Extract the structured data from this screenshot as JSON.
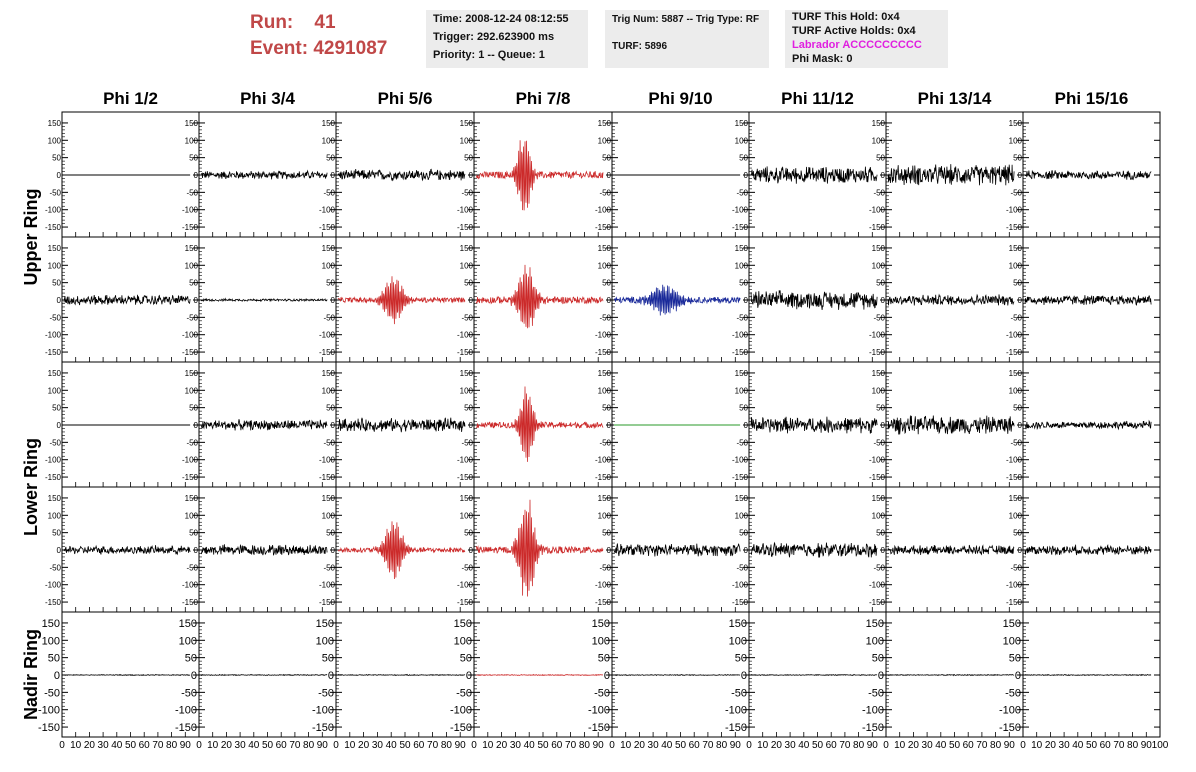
{
  "header": {
    "run_label": "Run:",
    "run_value": "41",
    "event_label": "Event:",
    "event_value": "4291087",
    "time": "Time: 2008-12-24 08:12:55",
    "trigger": "Trigger: 292.623900 ms",
    "priority_queue": "Priority: 1 -- Queue: 1",
    "trig_num_type": "Trig Num: 5887 -- Trig Type: RF",
    "turf": "TURF: 5896",
    "turf_this_hold": "TURF This Hold: 0x4",
    "turf_active_holds": "TURF Active Holds: 0x4",
    "labrador": "Labrador ACCCCCCCCC",
    "phi_mask": "Phi Mask: 0"
  },
  "colors": {
    "title_red": "#c04848",
    "trace_black": "#000000",
    "trace_red": "#cc2a2a",
    "trace_blue": "#1a2a9a",
    "trace_green": "#2a9a2a",
    "labrador": "#e020e0",
    "info_bg": "#ececec"
  },
  "chart_data": {
    "type": "line",
    "columns": [
      "Phi 1/2",
      "Phi 3/4",
      "Phi 5/6",
      "Phi 7/8",
      "Phi 9/10",
      "Phi 11/12",
      "Phi 13/14",
      "Phi 15/16"
    ],
    "row_labels": [
      "Upper Ring",
      "Lower Ring",
      "Nadir Ring"
    ],
    "rows_per_ring": [
      2,
      2,
      1
    ],
    "ylim": [
      -170,
      170
    ],
    "yticks": [
      150,
      100,
      50,
      0,
      -50,
      -100,
      -150
    ],
    "xlim": [
      0,
      100
    ],
    "xticks": [
      0,
      10,
      20,
      30,
      40,
      50,
      60,
      70,
      80,
      90,
      100
    ],
    "panels": [
      [
        {
          "color": "black",
          "kind": "flat",
          "amp": 0
        },
        {
          "color": "black",
          "kind": "noise",
          "amp": 14
        },
        {
          "color": "black",
          "kind": "noise",
          "amp": 18
        },
        {
          "color": "red",
          "kind": "pulse",
          "amp": 14,
          "peak": 130,
          "center": 38,
          "width": 6
        },
        {
          "color": "black",
          "kind": "flat",
          "amp": 0
        },
        {
          "color": "black",
          "kind": "noise",
          "amp": 28
        },
        {
          "color": "black",
          "kind": "noise",
          "amp": 34
        },
        {
          "color": "black",
          "kind": "noise",
          "amp": 15
        }
      ],
      [
        {
          "color": "black",
          "kind": "noise",
          "amp": 17
        },
        {
          "color": "black",
          "kind": "noise",
          "amp": 4
        },
        {
          "color": "red",
          "kind": "pulse",
          "amp": 10,
          "peak": 70,
          "center": 44,
          "width": 9
        },
        {
          "color": "red",
          "kind": "pulse",
          "amp": 14,
          "peak": 100,
          "center": 40,
          "width": 8
        },
        {
          "color": "blue",
          "kind": "pulse",
          "amp": 12,
          "peak": 45,
          "center": 40,
          "width": 14
        },
        {
          "color": "black",
          "kind": "noise",
          "amp": 30
        },
        {
          "color": "black",
          "kind": "noise",
          "amp": 18
        },
        {
          "color": "black",
          "kind": "noise",
          "amp": 17
        }
      ],
      [
        {
          "color": "black",
          "kind": "flat",
          "amp": 0
        },
        {
          "color": "black",
          "kind": "noise",
          "amp": 17
        },
        {
          "color": "black",
          "kind": "noise",
          "amp": 22
        },
        {
          "color": "red",
          "kind": "pulse",
          "amp": 12,
          "peak": 115,
          "center": 40,
          "width": 6
        },
        {
          "color": "green",
          "kind": "flat",
          "amp": 0
        },
        {
          "color": "black",
          "kind": "noise",
          "amp": 27
        },
        {
          "color": "black",
          "kind": "noise",
          "amp": 30
        },
        {
          "color": "black",
          "kind": "noise",
          "amp": 13
        }
      ],
      [
        {
          "color": "black",
          "kind": "noise",
          "amp": 14
        },
        {
          "color": "black",
          "kind": "noise",
          "amp": 18
        },
        {
          "color": "red",
          "kind": "pulse",
          "amp": 10,
          "peak": 95,
          "center": 44,
          "width": 8
        },
        {
          "color": "red",
          "kind": "pulse",
          "amp": 14,
          "peak": 160,
          "center": 40,
          "width": 7
        },
        {
          "color": "black",
          "kind": "noise",
          "amp": 20
        },
        {
          "color": "black",
          "kind": "noise",
          "amp": 25
        },
        {
          "color": "black",
          "kind": "noise",
          "amp": 15
        },
        {
          "color": "black",
          "kind": "noise",
          "amp": 16
        }
      ],
      [
        {
          "color": "black",
          "kind": "noise",
          "amp": 1.5
        },
        {
          "color": "black",
          "kind": "noise",
          "amp": 1.5
        },
        {
          "color": "black",
          "kind": "noise",
          "amp": 1.5
        },
        {
          "color": "red",
          "kind": "noise",
          "amp": 1.5
        },
        {
          "color": "black",
          "kind": "noise",
          "amp": 1.5
        },
        {
          "color": "black",
          "kind": "noise",
          "amp": 1.5
        },
        {
          "color": "black",
          "kind": "noise",
          "amp": 1.5
        },
        {
          "color": "black",
          "kind": "noise",
          "amp": 1.5
        }
      ]
    ]
  }
}
